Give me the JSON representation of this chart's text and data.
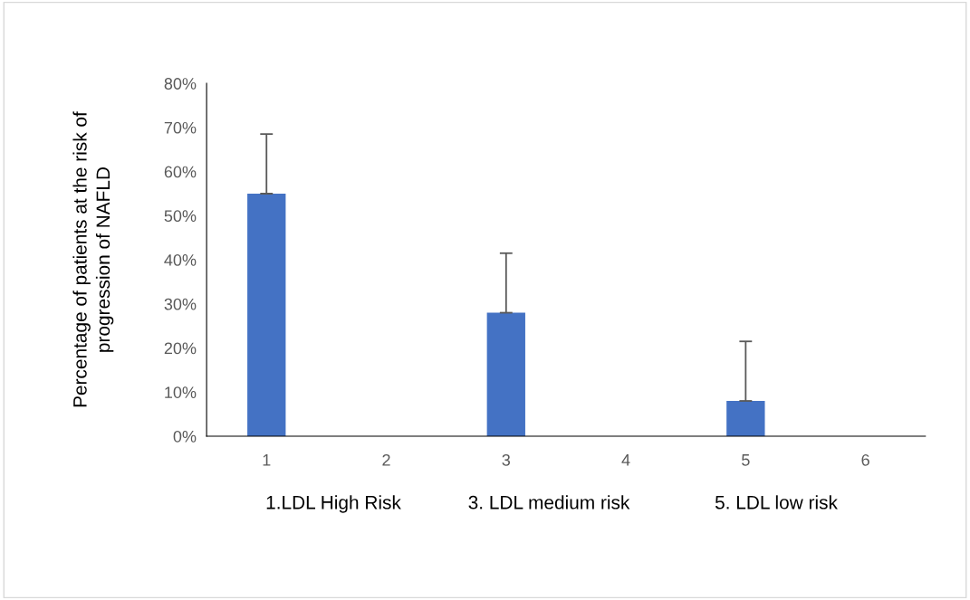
{
  "chart_data": {
    "type": "bar",
    "ylabel": "Percentage of patients at the risk of\nprogression of NAFLD",
    "categories": [
      "1",
      "2",
      "3",
      "4",
      "5",
      "6"
    ],
    "values": [
      55,
      null,
      28,
      null,
      8,
      null
    ],
    "errors": [
      [
        55,
        68.5
      ],
      null,
      [
        28,
        41.5
      ],
      null,
      [
        8,
        21.5
      ],
      null
    ],
    "color": "#4472c4",
    "ylim": [
      0,
      80
    ],
    "yticks": [
      {
        "value": 0,
        "label": "0%"
      },
      {
        "value": 10,
        "label": "10%"
      },
      {
        "value": 20,
        "label": "20%"
      },
      {
        "value": 30,
        "label": "30%"
      },
      {
        "value": 40,
        "label": "40%"
      },
      {
        "value": 50,
        "label": "50%"
      },
      {
        "value": 60,
        "label": "60%"
      },
      {
        "value": 70,
        "label": "70%"
      },
      {
        "value": 80,
        "label": "80%"
      }
    ],
    "grid": false,
    "annotations": [
      "1.LDL High Risk",
      "3. LDL medium risk",
      "5. LDL low risk"
    ]
  }
}
